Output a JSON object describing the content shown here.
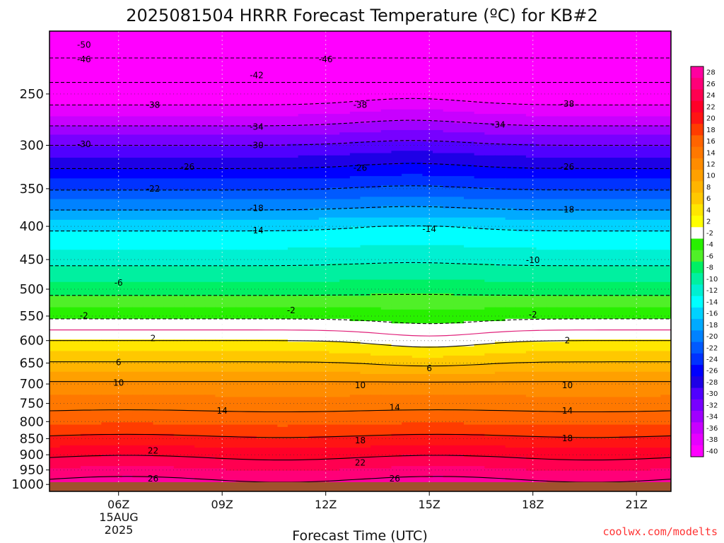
{
  "chart_data": {
    "type": "contour",
    "title": "2025081504 HRRR Forecast Temperature (ºC) for KB#2",
    "xlabel": "Forecast Time (UTC)",
    "x_ticks": [
      "06Z",
      "09Z",
      "12Z",
      "15Z",
      "18Z",
      "21Z"
    ],
    "x_date_label": [
      "15AUG",
      "2025"
    ],
    "x_range_hours": [
      4,
      22
    ],
    "y_ticks": [
      250,
      300,
      350,
      400,
      450,
      500,
      550,
      600,
      650,
      700,
      750,
      800,
      850,
      900,
      950,
      1000
    ],
    "y_range": [
      200,
      1025
    ],
    "y_scale": "log",
    "colorbar_labels": [
      28,
      26,
      24,
      22,
      20,
      18,
      16,
      14,
      12,
      10,
      8,
      6,
      4,
      2,
      -2,
      -4,
      -6,
      -8,
      -10,
      -12,
      -14,
      -16,
      -18,
      -20,
      -22,
      -24,
      -26,
      -28,
      -30,
      -32,
      -34,
      -36,
      -38,
      -40
    ],
    "colorbar_colors": [
      "#ff00a0",
      "#ff0078",
      "#ff0050",
      "#ff0028",
      "#ff1414",
      "#ff3c00",
      "#ff6400",
      "#ff7800",
      "#ff8c00",
      "#ffa000",
      "#ffb400",
      "#ffc800",
      "#ffe600",
      "#ffff00",
      "#ffffff",
      "#28f000",
      "#50f028",
      "#00f064",
      "#00f0a0",
      "#00f0d2",
      "#00ffff",
      "#00d2ff",
      "#00aaff",
      "#0082ff",
      "#005aff",
      "#0032ff",
      "#0000ff",
      "#1e00e6",
      "#5000ff",
      "#7800ff",
      "#a000ff",
      "#c800ff",
      "#e600ff",
      "#ff00ff"
    ],
    "contour_levels": [
      -50,
      -46,
      -42,
      -38,
      -34,
      -30,
      -26,
      -22,
      -18,
      -14,
      -10,
      -6,
      -2,
      2,
      6,
      10,
      14,
      18,
      22,
      26
    ],
    "contour_labels": [
      {
        "value": -50,
        "x": 5,
        "p": 210
      },
      {
        "value": -46,
        "x": 5,
        "p": 221
      },
      {
        "value": -46,
        "x": 12,
        "p": 221
      },
      {
        "value": -42,
        "x": 10,
        "p": 234
      },
      {
        "value": -38,
        "x": 7,
        "p": 260
      },
      {
        "value": -38,
        "x": 13,
        "p": 260
      },
      {
        "value": -38,
        "x": 19,
        "p": 259
      },
      {
        "value": -34,
        "x": 10,
        "p": 281
      },
      {
        "value": -34,
        "x": 17,
        "p": 279
      },
      {
        "value": -30,
        "x": 5,
        "p": 299
      },
      {
        "value": -30,
        "x": 10,
        "p": 300
      },
      {
        "value": -26,
        "x": 8,
        "p": 324
      },
      {
        "value": -26,
        "x": 13,
        "p": 325
      },
      {
        "value": -26,
        "x": 19,
        "p": 324
      },
      {
        "value": -22,
        "x": 7,
        "p": 350
      },
      {
        "value": -18,
        "x": 10,
        "p": 375
      },
      {
        "value": -18,
        "x": 19,
        "p": 377
      },
      {
        "value": -14,
        "x": 10,
        "p": 406
      },
      {
        "value": -14,
        "x": 15,
        "p": 404
      },
      {
        "value": -10,
        "x": 18,
        "p": 451
      },
      {
        "value": -6,
        "x": 6,
        "p": 489
      },
      {
        "value": -2,
        "x": 5,
        "p": 549
      },
      {
        "value": -2,
        "x": 11,
        "p": 539
      },
      {
        "value": -2,
        "x": 18,
        "p": 547
      },
      {
        "value": 2,
        "x": 7,
        "p": 595
      },
      {
        "value": 2,
        "x": 19,
        "p": 600
      },
      {
        "value": 6,
        "x": 6,
        "p": 648
      },
      {
        "value": 6,
        "x": 15,
        "p": 662
      },
      {
        "value": 10,
        "x": 6,
        "p": 697
      },
      {
        "value": 10,
        "x": 13,
        "p": 703
      },
      {
        "value": 10,
        "x": 19,
        "p": 703
      },
      {
        "value": 14,
        "x": 9,
        "p": 770
      },
      {
        "value": 14,
        "x": 14,
        "p": 761
      },
      {
        "value": 14,
        "x": 19,
        "p": 770
      },
      {
        "value": 18,
        "x": 13,
        "p": 856
      },
      {
        "value": 18,
        "x": 19,
        "p": 849
      },
      {
        "value": 22,
        "x": 7,
        "p": 887
      },
      {
        "value": 22,
        "x": 13,
        "p": 926
      },
      {
        "value": 26,
        "x": 7,
        "p": 980
      },
      {
        "value": 26,
        "x": 14,
        "p": 980
      }
    ],
    "credit": "coolwx.com/modelts"
  },
  "ui": {
    "title_color": "#111111",
    "credit_color": "#ff3333",
    "ground_color": "#a0522d"
  }
}
